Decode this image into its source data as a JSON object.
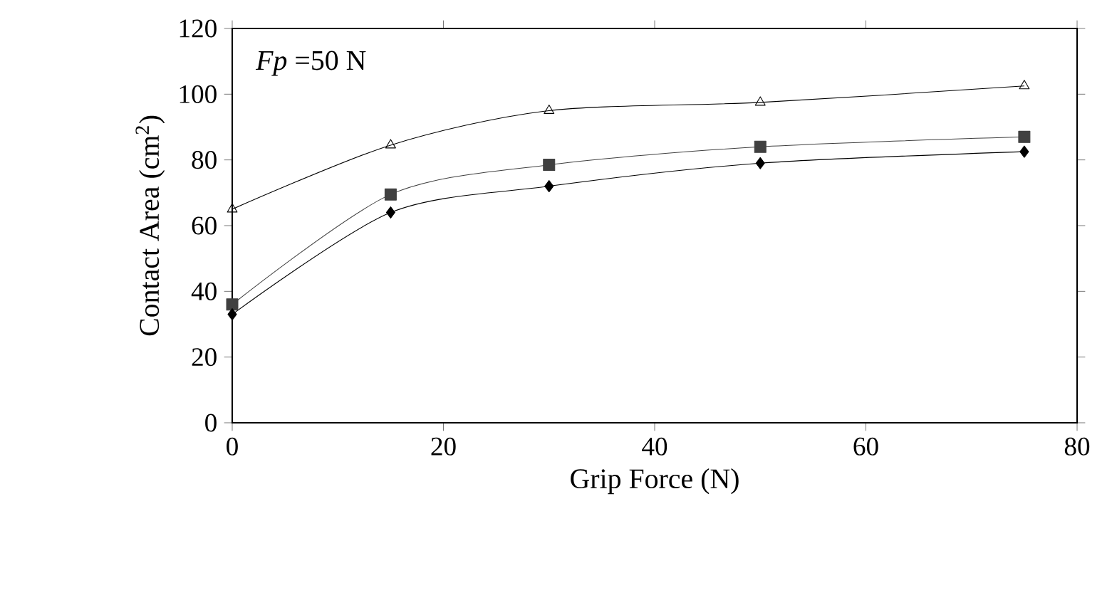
{
  "chart_data": {
    "type": "line",
    "xlabel": "Grip Force (N)",
    "ylabel": "Contact Area (cm$^{2}$)",
    "x": [
      0,
      15,
      30,
      50,
      75
    ],
    "series": [
      {
        "color": "#000000",
        "marker": "triangle",
        "values": [
          65,
          84.5,
          95,
          97.5,
          102.5
        ]
      },
      {
        "color": "#404040",
        "marker": "square",
        "values": [
          36,
          69.5,
          78.5,
          84,
          87
        ]
      },
      {
        "color": "#000000",
        "marker": "diamond",
        "values": [
          33,
          64,
          72,
          79,
          82.5
        ]
      }
    ],
    "xlim": [
      0,
      80
    ],
    "xticks": [
      0,
      20,
      40,
      60,
      80
    ],
    "ylim": [
      0,
      120
    ],
    "yticks": [
      0,
      20,
      40,
      60,
      80,
      100,
      120
    ],
    "annotations": [
      "*Fp* =50 N"
    ]
  }
}
